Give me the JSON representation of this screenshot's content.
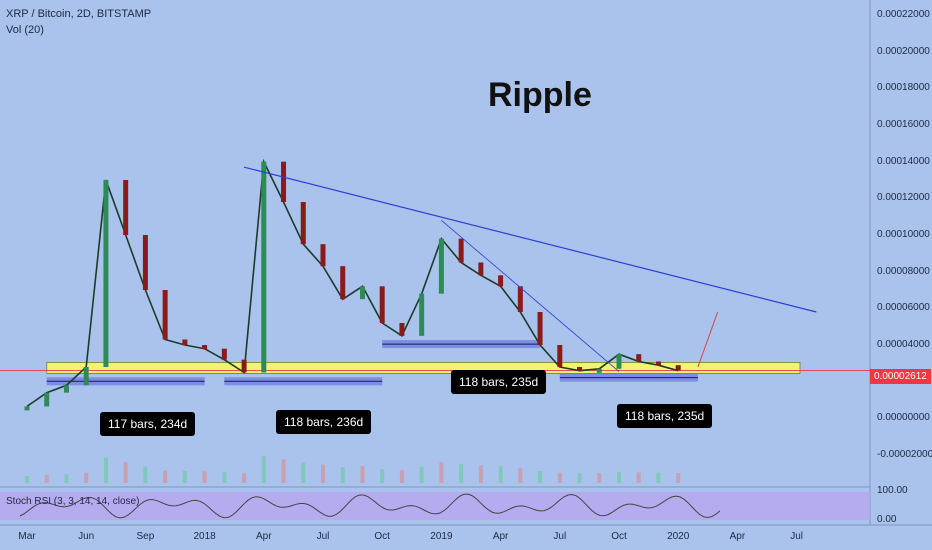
{
  "header": {
    "symbol_line": "XRP / Bitcoin, 2D, BITSTAMP",
    "volume_label": "Vol (20)"
  },
  "chart_title": "Ripple",
  "current_price": "0.00002612",
  "colors": {
    "background": "#a9c3ec",
    "up_candle": "#2e8b57",
    "down_candle": "#8b1a1a",
    "support_zone": "#f1f56e",
    "trendline": "#2b3fd6",
    "measure_box": "#6f7fe6",
    "rsi_band": "#b9a4f0",
    "price_line": "#f23645"
  },
  "annotations": [
    {
      "text": "117 bars, 234d"
    },
    {
      "text": "118 bars, 236d"
    },
    {
      "text": "118 bars, 235d"
    },
    {
      "text": "118 bars, 235d"
    }
  ],
  "rsi": {
    "label": "Stoch RSI (3, 3, 14, 14, close)",
    "ticks": [
      "100.00",
      "0.00"
    ]
  },
  "chart_data": {
    "type": "line",
    "x_tick_labels": [
      "Mar",
      "Jun",
      "Sep",
      "2018",
      "Apr",
      "Jul",
      "Oct",
      "2019",
      "Apr",
      "Jul",
      "Oct",
      "2020",
      "Apr",
      "Jul"
    ],
    "y_tick_labels": [
      "0.00022000",
      "0.00020000",
      "0.00018000",
      "0.00016000",
      "0.00014000",
      "0.00012000",
      "0.00010000",
      "0.00008000",
      "0.00006000",
      "0.00004000",
      "0.00002000",
      "0.00000000",
      "-0.00002000"
    ],
    "ylim": [
      -2e-05,
      0.00022
    ],
    "x_index_labels": [
      "2017-03",
      "2017-04",
      "2017-05",
      "2017-06",
      "2017-07",
      "2017-08",
      "2017-09",
      "2017-10",
      "2017-11",
      "2017-12",
      "2018-01",
      "2018-02",
      "2018-03",
      "2018-04",
      "2018-05",
      "2018-06",
      "2018-07",
      "2018-08",
      "2018-09",
      "2018-10",
      "2018-11",
      "2018-12",
      "2019-01",
      "2019-02",
      "2019-03",
      "2019-04",
      "2019-05",
      "2019-06",
      "2019-07",
      "2019-08",
      "2019-09",
      "2019-10",
      "2019-11",
      "2019-12"
    ],
    "series": [
      {
        "values": [
          6.5e-06,
          1.4e-05,
          1.8e-05,
          2.8e-05,
          0.00013,
          0.0001,
          7e-05,
          4.3e-05,
          4e-05,
          3.8e-05,
          3.2e-05,
          2.5e-05,
          0.00014,
          0.000118,
          9.5e-05,
          8.3e-05,
          6.5e-05,
          7.2e-05,
          5.2e-05,
          4.5e-05,
          6.8e-05,
          9.8e-05,
          8.5e-05,
          7.8e-05,
          7.2e-05,
          5.8e-05,
          4e-05,
          2.8e-05,
          2.6e-05,
          2.7e-05,
          3.5e-05,
          3.1e-05,
          2.9e-05,
          2.6e-05
        ]
      }
    ],
    "support_zone": [
      2.45e-05,
      3.05e-05
    ],
    "trendline_points": [
      [
        "2018-02",
        0.000137
      ],
      [
        "2020-07",
        5.8e-05
      ]
    ],
    "grid": false
  }
}
